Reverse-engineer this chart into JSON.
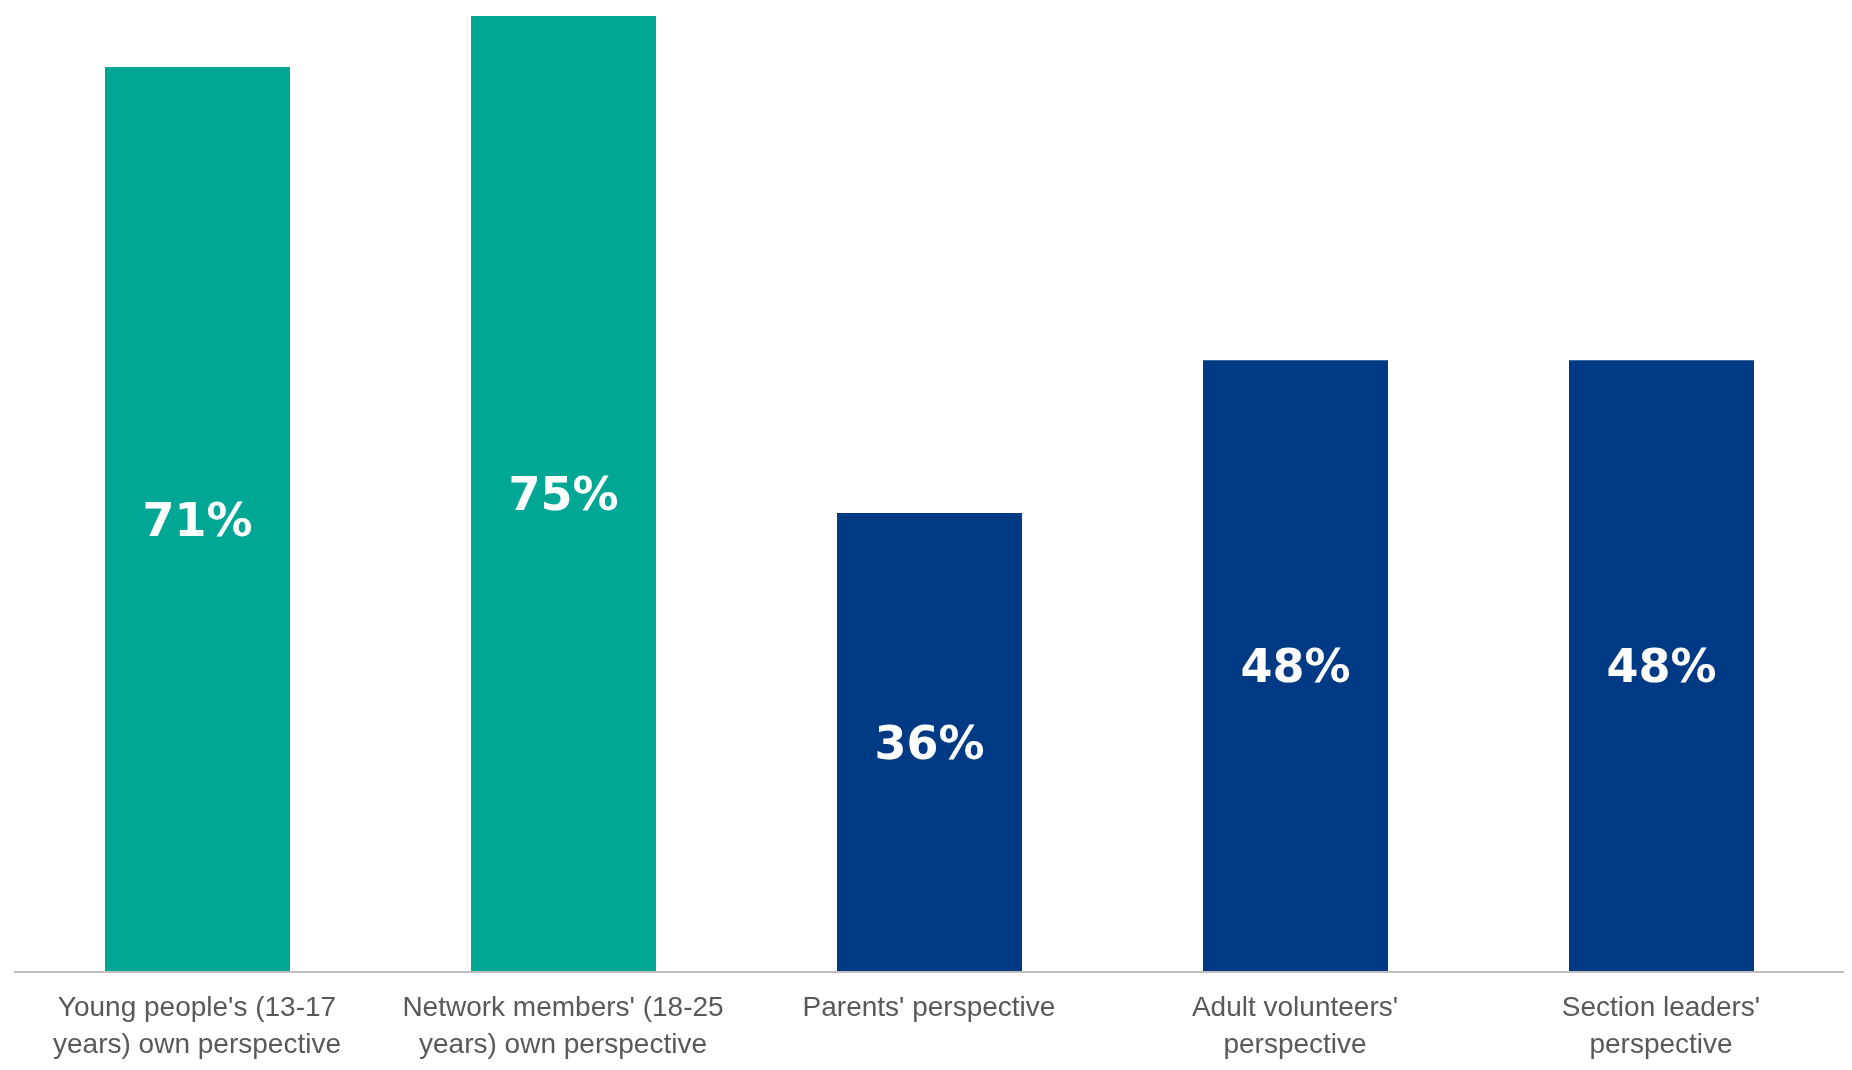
{
  "chart_data": {
    "type": "bar",
    "categories": [
      "Young people's (13-17 years) own perspective",
      "Network members' (18-25 years) own perspective",
      "Parents' perspective",
      "Adult volunteers' perspective",
      "Section leaders' perspective"
    ],
    "values": [
      71,
      75,
      36,
      48,
      48
    ],
    "colors": [
      "#00a794",
      "#00a794",
      "#003a84",
      "#003a84",
      "#003a84"
    ],
    "value_labels": [
      "71%",
      "75%",
      "36%",
      "48%",
      "48%"
    ],
    "grid": false,
    "legend": false
  }
}
